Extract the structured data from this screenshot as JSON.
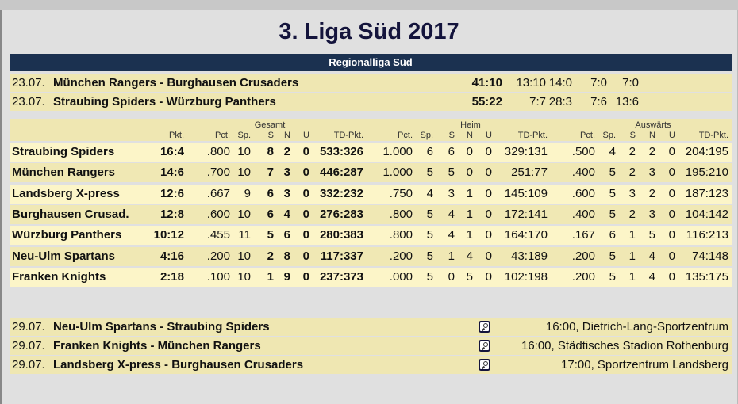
{
  "title": "3. Liga Süd 2017",
  "section": "Regionalliga Süd",
  "results": [
    {
      "date": "23.07.",
      "match": "München Rangers - Burghausen Crusaders",
      "score": "41:10",
      "quarters": [
        "13:10",
        "14:0",
        "7:0",
        "7:0"
      ]
    },
    {
      "date": "23.07.",
      "match": "Straubing Spiders - Würzburg Panthers",
      "score": "55:22",
      "quarters": [
        "7:7",
        "28:3",
        "7:6",
        "13:6"
      ]
    }
  ],
  "table_header": {
    "groups": [
      "Gesamt",
      "Heim",
      "Auswärts"
    ],
    "columns": [
      "Pkt.",
      "Pct.",
      "Sp.",
      "S",
      "N",
      "U",
      "TD-Pkt.",
      "Pct.",
      "Sp.",
      "S",
      "N",
      "U",
      "TD-Pkt.",
      "Pct.",
      "Sp.",
      "S",
      "N",
      "U",
      "TD-Pkt."
    ]
  },
  "standings": [
    {
      "team": "Straubing Spiders",
      "v": [
        "16:4",
        ".800",
        "10",
        "8",
        "2",
        "0",
        "533:326",
        "1.000",
        "6",
        "6",
        "0",
        "0",
        "329:131",
        ".500",
        "4",
        "2",
        "2",
        "0",
        "204:195"
      ]
    },
    {
      "team": "München Rangers",
      "v": [
        "14:6",
        ".700",
        "10",
        "7",
        "3",
        "0",
        "446:287",
        "1.000",
        "5",
        "5",
        "0",
        "0",
        "251:77",
        ".400",
        "5",
        "2",
        "3",
        "0",
        "195:210"
      ]
    },
    {
      "team": "Landsberg X-press",
      "v": [
        "12:6",
        ".667",
        "9",
        "6",
        "3",
        "0",
        "332:232",
        ".750",
        "4",
        "3",
        "1",
        "0",
        "145:109",
        ".600",
        "5",
        "3",
        "2",
        "0",
        "187:123"
      ]
    },
    {
      "team": "Burghausen Crusad.",
      "v": [
        "12:8",
        ".600",
        "10",
        "6",
        "4",
        "0",
        "276:283",
        ".800",
        "5",
        "4",
        "1",
        "0",
        "172:141",
        ".400",
        "5",
        "2",
        "3",
        "0",
        "104:142"
      ]
    },
    {
      "team": "Würzburg Panthers",
      "v": [
        "10:12",
        ".455",
        "11",
        "5",
        "6",
        "0",
        "280:383",
        ".800",
        "5",
        "4",
        "1",
        "0",
        "164:170",
        ".167",
        "6",
        "1",
        "5",
        "0",
        "116:213"
      ]
    },
    {
      "team": "Neu-Ulm Spartans",
      "v": [
        "4:16",
        ".200",
        "10",
        "2",
        "8",
        "0",
        "117:337",
        ".200",
        "5",
        "1",
        "4",
        "0",
        "43:189",
        ".200",
        "5",
        "1",
        "4",
        "0",
        "74:148"
      ]
    },
    {
      "team": "Franken Knights",
      "v": [
        "2:18",
        ".100",
        "10",
        "1",
        "9",
        "0",
        "237:373",
        ".000",
        "5",
        "0",
        "5",
        "0",
        "102:198",
        ".200",
        "5",
        "1",
        "4",
        "0",
        "135:175"
      ]
    }
  ],
  "fixtures": [
    {
      "date": "29.07.",
      "match": "Neu-Ulm Spartans - Straubing Spiders",
      "venue": "16:00, Dietrich-Lang-Sportzentrum",
      "icon": "magnifier-icon"
    },
    {
      "date": "29.07.",
      "match": "Franken Knights - München Rangers",
      "venue": "16:00, Städtisches Stadion Rothenburg",
      "icon": "magnifier-icon"
    },
    {
      "date": "29.07.",
      "match": "Landsberg X-press - Burghausen Crusaders",
      "venue": "17:00, Sportzentrum Landsberg",
      "icon": "magnifier-icon"
    }
  ],
  "colors": {
    "header_bar": "#1b3150",
    "title": "#14143c",
    "row_light": "#fcf5c8",
    "row_dark": "#efe7b2"
  }
}
